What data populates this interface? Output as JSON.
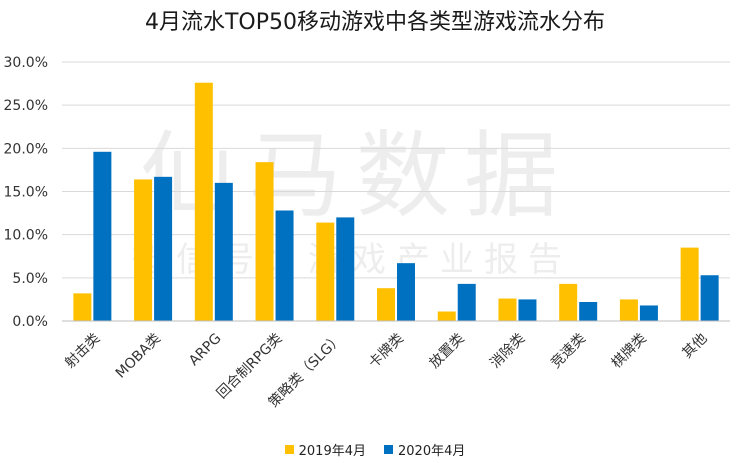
{
  "chart_data": {
    "type": "bar",
    "title": "4月流水TOP50移动游戏中各类型游戏流水分布",
    "categories": [
      "射击类",
      "MOBA类",
      "ARPG",
      "回合制RPG类",
      "策略类（SLG）",
      "卡牌类",
      "放置类",
      "消除类",
      "竞速类",
      "棋牌类",
      "其他"
    ],
    "series": [
      {
        "name": "2019年4月",
        "color": "#FFC000",
        "values": [
          3.2,
          16.4,
          27.6,
          18.4,
          11.4,
          3.8,
          1.1,
          2.6,
          4.3,
          2.5,
          8.5
        ]
      },
      {
        "name": "2020年4月",
        "color": "#0070C0",
        "values": [
          19.6,
          16.7,
          16.0,
          12.8,
          12.0,
          6.7,
          4.3,
          2.5,
          2.2,
          1.8,
          5.3
        ]
      }
    ],
    "ylim": [
      0,
      30
    ],
    "yticks": [
      "0.0%",
      "5.0%",
      "10.0%",
      "15.0%",
      "20.0%",
      "25.0%",
      "30.0%"
    ],
    "grid": true,
    "legend_position": "bottom"
  },
  "watermark": {
    "main": "仙马数据",
    "sub": "微信号：游戏产业报告"
  }
}
